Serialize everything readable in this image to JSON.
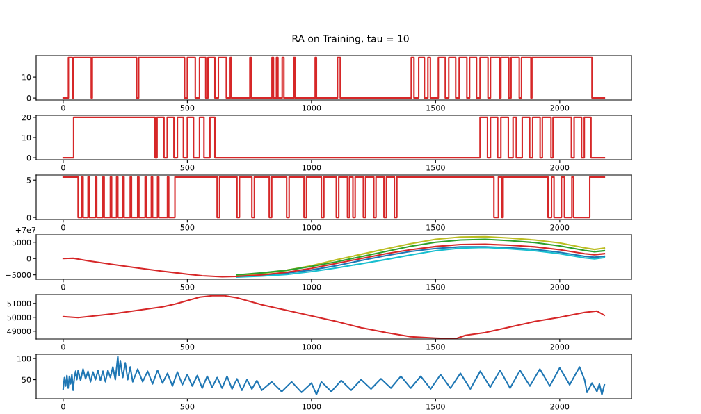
{
  "chart_data": [
    {
      "type": "step",
      "title": "RA on Training, tau = 10",
      "xlim": [
        -109,
        2289
      ],
      "xticks": [
        0,
        500,
        1000,
        1500,
        2000
      ],
      "ylim": [
        -0.97,
        20.37
      ],
      "yticks": [
        0,
        10
      ],
      "grid": false,
      "legend": false,
      "series": [
        {
          "color": "#d62728",
          "x": [
            0,
            21,
            37,
            42,
            113,
            117,
            296,
            304,
            489,
            500,
            532,
            549,
            574,
            583,
            611,
            625,
            657,
            673,
            678,
            752,
            757,
            841,
            847,
            859,
            865,
            882,
            889,
            929,
            934,
            1015,
            1020,
            1105,
            1116,
            1402,
            1413,
            1432,
            1455,
            1469,
            1479,
            1511,
            1539,
            1553,
            1581,
            1595,
            1626,
            1637,
            1665,
            1679,
            1711,
            1721,
            1758,
            1763,
            1795,
            1804,
            1837,
            1846,
            1884,
            1888,
            2130,
            2180
          ],
          "values": [
            0,
            19.4,
            0,
            19.4,
            0,
            19.4,
            0,
            19.4,
            0,
            19.4,
            0,
            19.4,
            0,
            19.4,
            0,
            19.4,
            0,
            19.4,
            0,
            19.4,
            0,
            19.4,
            0,
            19.4,
            0,
            19.4,
            0,
            19.4,
            0,
            19.4,
            0,
            19.4,
            0,
            19.4,
            0,
            19.4,
            0,
            19.4,
            0,
            19.4,
            0,
            19.4,
            0,
            19.4,
            0,
            19.4,
            0,
            19.4,
            0,
            19.4,
            0,
            19.4,
            0,
            19.4,
            0,
            19.4,
            0,
            19.4,
            0,
            0
          ]
        }
      ]
    },
    {
      "type": "step",
      "xlim": [
        -109,
        2289
      ],
      "xticks": [
        0,
        500,
        1000,
        1500,
        2000
      ],
      "ylim": [
        -1,
        21
      ],
      "yticks": [
        0,
        10,
        20
      ],
      "grid": false,
      "legend": false,
      "series": [
        {
          "color": "#d62728",
          "x": [
            0,
            42,
            370,
            378,
            406,
            419,
            446,
            460,
            484,
            500,
            525,
            549,
            567,
            591,
            611,
            1679,
            1709,
            1721,
            1750,
            1763,
            1793,
            1812,
            1825,
            1849,
            1879,
            1891,
            1921,
            1930,
            1965,
            1973,
            2047,
            2058,
            2088,
            2099,
            2126,
            2180
          ],
          "values": [
            0,
            20,
            0,
            20,
            0,
            20,
            0,
            20,
            0,
            20,
            0,
            20,
            0,
            20,
            0,
            20,
            0,
            20,
            0,
            20,
            0,
            20,
            0,
            20,
            0,
            20,
            0,
            20,
            0,
            20,
            0,
            20,
            0,
            20,
            0,
            0
          ]
        }
      ]
    },
    {
      "type": "step",
      "xlim": [
        -109,
        2289
      ],
      "xticks": [
        0,
        500,
        1000,
        1500,
        2000
      ],
      "ylim": [
        -0.27,
        5.67
      ],
      "yticks": [
        0,
        5
      ],
      "grid": false,
      "legend": false,
      "series": [
        {
          "color": "#d62728",
          "x": [
            0,
            60,
            75,
            80,
            100,
            105,
            130,
            135,
            160,
            165,
            190,
            195,
            215,
            220,
            240,
            245,
            270,
            275,
            300,
            305,
            330,
            335,
            355,
            360,
            380,
            385,
            420,
            425,
            450,
            620,
            630,
            700,
            710,
            760,
            770,
            830,
            840,
            900,
            910,
            970,
            980,
            1040,
            1050,
            1100,
            1110,
            1145,
            1153,
            1167,
            1176,
            1209,
            1218,
            1251,
            1260,
            1292,
            1302,
            1334,
            1344,
            1735,
            1753,
            1767,
            1772,
            1953,
            1967,
            1977,
            2007,
            2019,
            2049,
            2056,
            2121,
            2180
          ],
          "values": [
            5.4,
            0,
            5.4,
            0,
            5.4,
            0,
            5.4,
            0,
            5.4,
            0,
            5.4,
            0,
            5.4,
            0,
            5.4,
            0,
            5.4,
            0,
            5.4,
            0,
            5.4,
            0,
            5.4,
            0,
            5.4,
            0,
            5.4,
            0,
            5.4,
            0,
            5.4,
            0,
            5.4,
            0,
            5.4,
            0,
            5.4,
            0,
            5.4,
            0,
            5.4,
            0,
            5.4,
            0,
            5.4,
            0,
            5.4,
            0,
            5.4,
            0,
            5.4,
            0,
            5.4,
            0,
            5.4,
            0,
            5.4,
            0,
            5.4,
            0,
            5.4,
            0,
            5.4,
            0,
            5.4,
            0,
            5.4,
            0,
            5.4,
            5.4
          ]
        }
      ]
    },
    {
      "type": "line",
      "xlim": [
        -109,
        2289
      ],
      "xticks": [
        0,
        500,
        1000,
        1500,
        2000
      ],
      "ylim": [
        -6350,
        7300
      ],
      "yticks": [
        {
          "value": -5000,
          "label": "−5000"
        },
        0,
        5000
      ],
      "annotations": [
        "+7e7"
      ],
      "grid": false,
      "legend": false,
      "x": [
        0,
        40,
        100,
        200,
        300,
        400,
        500,
        560,
        640,
        700,
        800,
        900,
        1000,
        1100,
        1200,
        1300,
        1400,
        1500,
        1600,
        1700,
        1800,
        1900,
        2000,
        2100,
        2140,
        2180
      ],
      "series": [
        {
          "color": "#bcbd22",
          "values": [
            null,
            null,
            null,
            null,
            null,
            null,
            null,
            null,
            null,
            -5300,
            -4600,
            -3600,
            -2200,
            -400,
            1300,
            3000,
            4600,
            5900,
            6600,
            6700,
            6300,
            5700,
            4800,
            3300,
            2800,
            3200
          ]
        },
        {
          "color": "#2ca02c",
          "values": [
            null,
            null,
            null,
            null,
            null,
            null,
            null,
            null,
            null,
            -5000,
            -4400,
            -3600,
            -2400,
            -1000,
            600,
            2200,
            3800,
            5000,
            5700,
            5900,
            5500,
            4900,
            3900,
            2500,
            2100,
            2400
          ]
        },
        {
          "color": "#1f77b4",
          "values": [
            null,
            null,
            null,
            null,
            null,
            null,
            null,
            null,
            null,
            -5500,
            -5200,
            -4500,
            -3500,
            -2200,
            -600,
            900,
            2200,
            3100,
            3600,
            3600,
            3300,
            2800,
            1900,
            700,
            400,
            700
          ]
        },
        {
          "color": "#17becf",
          "values": [
            null,
            null,
            null,
            null,
            null,
            null,
            null,
            null,
            null,
            -5700,
            -5400,
            -4900,
            -4000,
            -2900,
            -1600,
            -300,
            1100,
            2400,
            3200,
            3400,
            3000,
            2400,
            1500,
            200,
            -100,
            300
          ]
        },
        {
          "color": "#d62728",
          "values": [
            0,
            100,
            -700,
            -1800,
            -2900,
            -3900,
            -4800,
            -5300,
            -5600,
            -5500,
            -5000,
            -4200,
            -3000,
            -1500,
            0,
            1500,
            2700,
            3700,
            4300,
            4400,
            4100,
            3600,
            2700,
            1500,
            1200,
            1500
          ]
        }
      ]
    },
    {
      "type": "line",
      "xlim": [
        -109,
        2289
      ],
      "xticks": [
        0,
        500,
        1000,
        1500,
        2000
      ],
      "ylim": [
        48440,
        51640
      ],
      "yticks": [
        49000,
        50000,
        51000
      ],
      "grid": false,
      "legend": false,
      "x": [
        0,
        60,
        100,
        200,
        300,
        400,
        450,
        500,
        550,
        600,
        650,
        700,
        800,
        900,
        1000,
        1100,
        1200,
        1300,
        1400,
        1500,
        1580,
        1620,
        1700,
        1800,
        1900,
        2000,
        2100,
        2150,
        2180
      ],
      "series": [
        {
          "color": "#d62728",
          "values": [
            50050,
            49980,
            50050,
            50250,
            50500,
            50750,
            50950,
            51200,
            51450,
            51550,
            51550,
            51400,
            50900,
            50500,
            50100,
            49700,
            49250,
            48900,
            48600,
            48500,
            48450,
            48700,
            48900,
            49300,
            49700,
            50000,
            50350,
            50450,
            50150
          ]
        }
      ]
    },
    {
      "type": "line",
      "xlim": [
        -109,
        2289
      ],
      "xticks": [
        0,
        500,
        1000,
        1500,
        2000
      ],
      "ylim": [
        5,
        110
      ],
      "yticks": [
        50,
        100
      ],
      "grid": false,
      "legend": false,
      "x": [
        0,
        5,
        10,
        15,
        20,
        25,
        30,
        35,
        40,
        45,
        50,
        55,
        60,
        70,
        80,
        90,
        100,
        110,
        120,
        130,
        140,
        150,
        160,
        170,
        180,
        190,
        200,
        210,
        220,
        225,
        230,
        240,
        250,
        260,
        270,
        280,
        300,
        320,
        340,
        360,
        380,
        400,
        420,
        440,
        460,
        480,
        500,
        520,
        540,
        560,
        580,
        600,
        620,
        640,
        660,
        680,
        700,
        720,
        740,
        760,
        780,
        800,
        840,
        880,
        920,
        960,
        1000,
        1020,
        1040,
        1080,
        1120,
        1160,
        1200,
        1240,
        1280,
        1320,
        1360,
        1400,
        1440,
        1480,
        1520,
        1560,
        1600,
        1640,
        1680,
        1720,
        1760,
        1800,
        1840,
        1880,
        1920,
        1960,
        2000,
        2040,
        2080,
        2100,
        2110,
        2130,
        2150,
        2160,
        2170,
        2180
      ],
      "series": [
        {
          "color": "#1f77b4",
          "values": [
            28,
            55,
            35,
            60,
            30,
            58,
            40,
            62,
            25,
            55,
            70,
            50,
            72,
            48,
            75,
            52,
            70,
            45,
            68,
            50,
            72,
            48,
            70,
            45,
            72,
            55,
            80,
            50,
            105,
            60,
            95,
            55,
            90,
            50,
            80,
            45,
            75,
            45,
            70,
            40,
            72,
            42,
            65,
            35,
            68,
            38,
            62,
            35,
            60,
            30,
            58,
            32,
            55,
            30,
            58,
            28,
            52,
            25,
            50,
            28,
            48,
            25,
            45,
            22,
            45,
            20,
            42,
            15,
            45,
            22,
            48,
            25,
            50,
            28,
            52,
            30,
            58,
            30,
            58,
            28,
            62,
            30,
            65,
            28,
            70,
            32,
            72,
            30,
            72,
            35,
            75,
            35,
            78,
            38,
            80,
            50,
            20,
            42,
            22,
            40,
            15,
            38
          ]
        }
      ]
    }
  ]
}
